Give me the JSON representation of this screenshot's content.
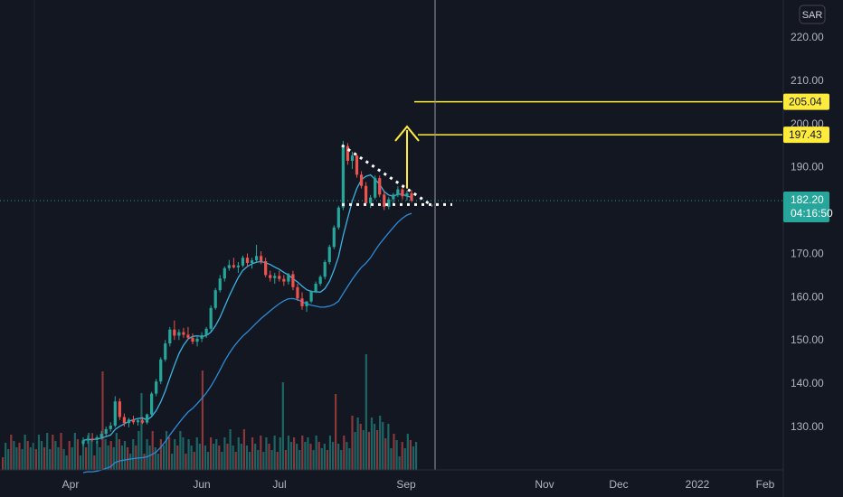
{
  "currency_button": "SAR",
  "chart_data": {
    "type": "candlestick",
    "price_axis": {
      "ticks": [
        130,
        140,
        150,
        160,
        170,
        180,
        190,
        200,
        210,
        220
      ],
      "tick_labels": [
        "130.00",
        "140.00",
        "150.00",
        "160.00",
        "170.00",
        "180.00",
        "190.00",
        "200.00",
        "210.00",
        "220.00"
      ]
    },
    "time_axis": {
      "labels": [
        "Apr",
        "Jun",
        "Jul",
        "Sep",
        "Nov",
        "Dec",
        "2022",
        "Feb"
      ]
    },
    "current_price": {
      "value": 182.2,
      "label": "182.20",
      "countdown": "04:16:50"
    },
    "levels": [
      {
        "value": 205.04,
        "label": "205.04",
        "color": "#ffeb3b"
      },
      {
        "value": 197.43,
        "label": "197.43",
        "color": "#ffeb3b"
      }
    ],
    "candles": [
      [
        126,
        127.5,
        125.5,
        126.8
      ],
      [
        126.8,
        128,
        126,
        127.2
      ],
      [
        127.2,
        128.5,
        126.5,
        126.9
      ],
      [
        126.9,
        128,
        126,
        127.5
      ],
      [
        127.5,
        129,
        127,
        128.3
      ],
      [
        128.3,
        130,
        127.8,
        129.4
      ],
      [
        129.4,
        131,
        128.8,
        130.2
      ],
      [
        130.2,
        137,
        129.8,
        135.8
      ],
      [
        135.8,
        136.5,
        131.5,
        132.2
      ],
      [
        132.2,
        133,
        130,
        130.8
      ],
      [
        130.8,
        132,
        129.8,
        131.6
      ],
      [
        131.6,
        132.5,
        130.5,
        131.0
      ],
      [
        131.0,
        132,
        130.2,
        131.4
      ],
      [
        131.4,
        132.2,
        130.6,
        130.9
      ],
      [
        130.9,
        133,
        130.5,
        132.8
      ],
      [
        132.8,
        138,
        132.5,
        137.6
      ],
      [
        137.6,
        141,
        137,
        140.4
      ],
      [
        140.4,
        146,
        139.8,
        145.5
      ],
      [
        145.5,
        150,
        145,
        149.2
      ],
      [
        149.2,
        153,
        148.5,
        152.4
      ],
      [
        152.4,
        154.5,
        150,
        151.0
      ],
      [
        151.0,
        152.5,
        150,
        151.8
      ],
      [
        151.8,
        152.8,
        150.5,
        151.2
      ],
      [
        151.2,
        153,
        150,
        150.5
      ],
      [
        150.5,
        151.5,
        149,
        149.6
      ],
      [
        149.6,
        151,
        148.5,
        150.3
      ],
      [
        150.3,
        151.8,
        149.5,
        151.1
      ],
      [
        151.1,
        153,
        150.5,
        152.6
      ],
      [
        152.6,
        158,
        152,
        157.4
      ],
      [
        157.4,
        162,
        157,
        161.5
      ],
      [
        161.5,
        165,
        161,
        164.2
      ],
      [
        164.2,
        167,
        163.5,
        166.6
      ],
      [
        166.6,
        168.5,
        166,
        167.3
      ],
      [
        167.3,
        169,
        166.5,
        166.8
      ],
      [
        166.8,
        168,
        165.5,
        167.2
      ],
      [
        167.2,
        169.5,
        166.8,
        169.0
      ],
      [
        169.0,
        170,
        167,
        167.8
      ],
      [
        167.8,
        169,
        166.5,
        168.4
      ],
      [
        168.4,
        172,
        168,
        169.4
      ],
      [
        169.4,
        170.5,
        167.5,
        168.2
      ],
      [
        168.2,
        169,
        164.5,
        165.0
      ],
      [
        165.0,
        166,
        163.5,
        164.3
      ],
      [
        164.3,
        165.5,
        163,
        164.8
      ],
      [
        164.8,
        166,
        163.5,
        164.1
      ],
      [
        164.1,
        165,
        162.5,
        163.5
      ],
      [
        163.5,
        165.5,
        162.8,
        165.2
      ],
      [
        165.2,
        166,
        161.5,
        162.2
      ],
      [
        162.2,
        163,
        159,
        159.6
      ],
      [
        159.6,
        161,
        157,
        157.8
      ],
      [
        157.8,
        159,
        156.5,
        158.9
      ],
      [
        158.9,
        161.5,
        158.5,
        161.2
      ],
      [
        161.2,
        163.5,
        160.8,
        163.0
      ],
      [
        163.0,
        165,
        162.5,
        164.6
      ],
      [
        164.6,
        168.5,
        164,
        168.0
      ],
      [
        168.0,
        172,
        167.5,
        171.5
      ],
      [
        171.5,
        176.5,
        171,
        176.0
      ],
      [
        176.0,
        181,
        175.5,
        180.6
      ],
      [
        180.6,
        196,
        180,
        194.8
      ],
      [
        194.8,
        195.5,
        190.5,
        191.4
      ],
      [
        191.4,
        193.5,
        189.5,
        192.6
      ],
      [
        192.6,
        193,
        187.5,
        188.2
      ],
      [
        188.2,
        189,
        185,
        185.6
      ],
      [
        185.6,
        186.5,
        181,
        181.6
      ],
      [
        181.6,
        183.5,
        180.5,
        182.9
      ],
      [
        182.9,
        188,
        182.5,
        187.4
      ],
      [
        187.4,
        188,
        183,
        183.6
      ],
      [
        183.6,
        184.5,
        180,
        180.8
      ],
      [
        180.8,
        183,
        180.2,
        182.5
      ],
      [
        182.5,
        184,
        181.5,
        183.6
      ],
      [
        183.6,
        185.5,
        183,
        184.8
      ],
      [
        184.8,
        185.5,
        182.5,
        183.2
      ],
      [
        183.2,
        184.5,
        182.2,
        183.9
      ],
      [
        183.9,
        184.6,
        181.8,
        182.2
      ]
    ],
    "volume_note": "volume histogram at bottom, colored by candle direction",
    "moving_averages": [
      {
        "color": "#3bb3e4",
        "period": 20
      },
      {
        "color": "#2d8bd6",
        "period": 50
      }
    ]
  }
}
